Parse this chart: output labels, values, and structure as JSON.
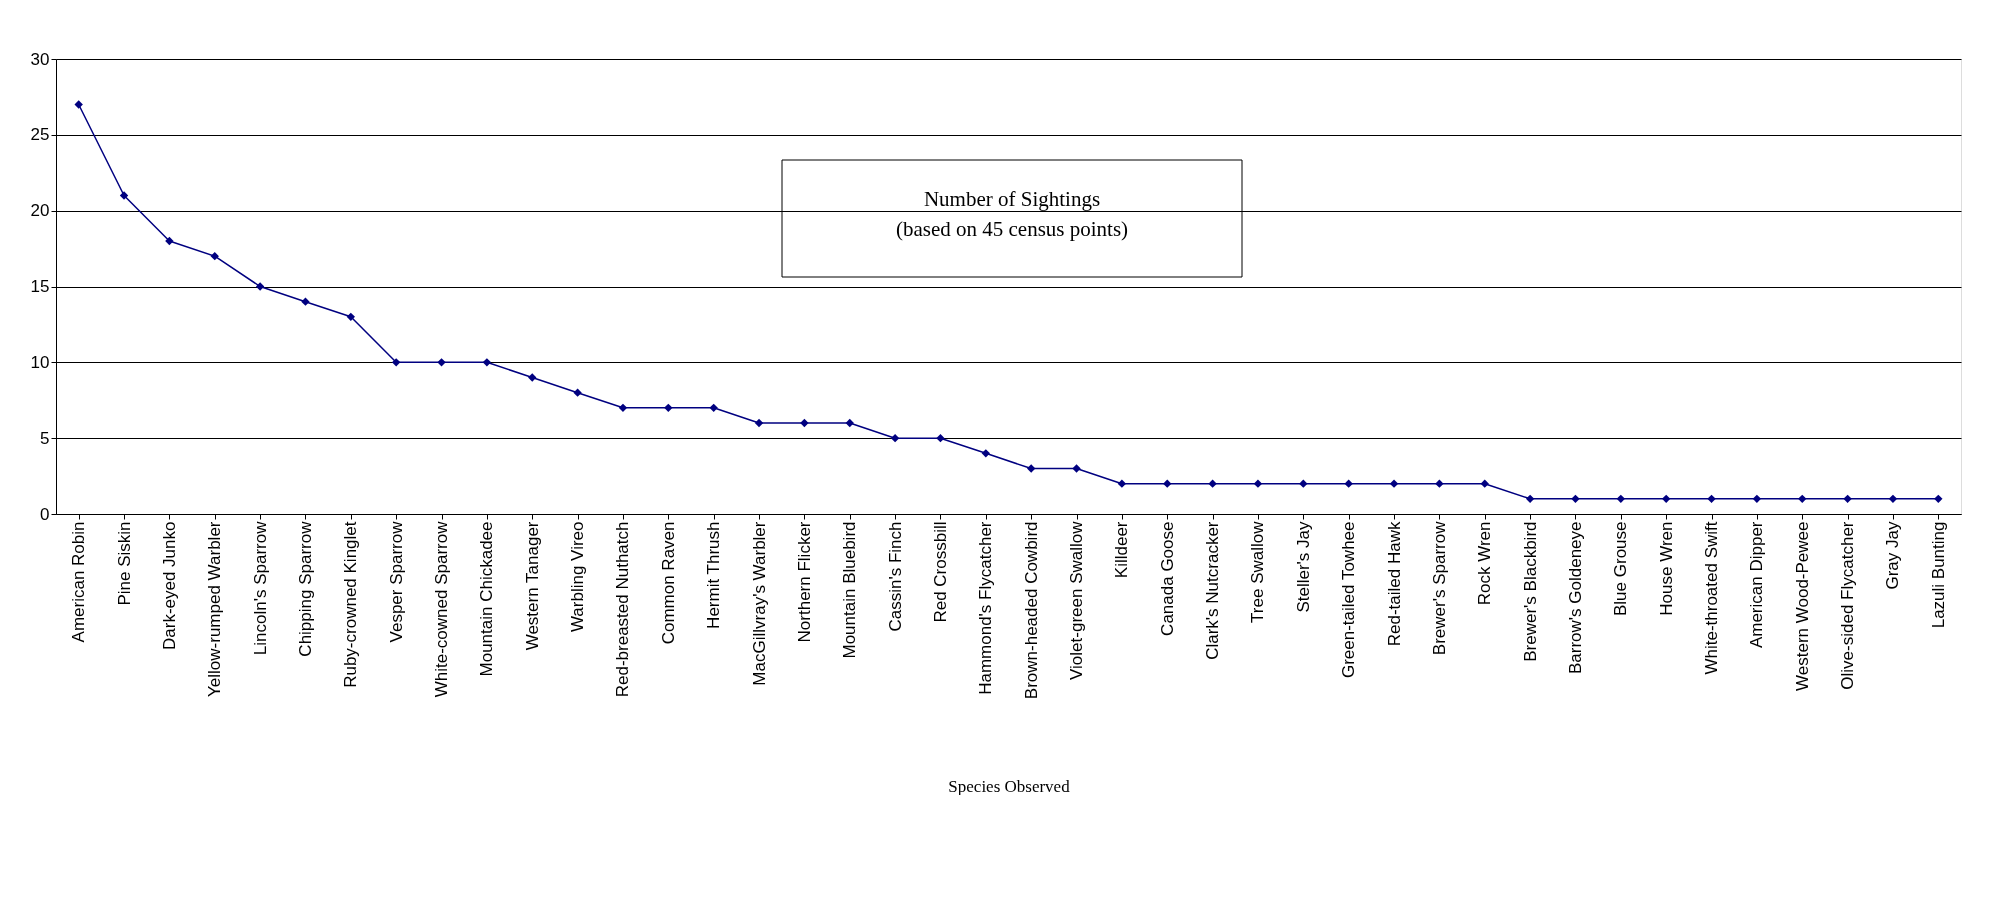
{
  "chart_data": {
    "type": "line",
    "title": "Number of Sightings",
    "subtitle": "(based on 45 census points)",
    "xlabel": "Species Observed",
    "categories": [
      "American Robin",
      "Pine Siskin",
      "Dark-eyed Junko",
      "Yellow-rumped Warbler",
      "Lincoln's Sparrow",
      "Chipping Sparrow",
      "Ruby-crowned Kinglet",
      "Vesper Sparrow",
      "White-cowned Sparrow",
      "Mountain Chickadee",
      "Western Tanager",
      "Warbling Vireo",
      "Red-breasted Nuthatch",
      "Common Raven",
      "Hermit Thrush",
      "MacGillvray's Warbler",
      "Northern Flicker",
      "Mountain Bluebird",
      "Cassin's Finch",
      "Red Crossbill",
      "Hammond's Flycatcher",
      "Brown-headed Cowbird",
      "Violet-green Swallow",
      "Killdeer",
      "Canada Goose",
      "Clark's Nutcracker",
      "Tree Swallow",
      "Steller's Jay",
      "Green-tailed Towhee",
      "Red-tailed Hawk",
      "Brewer's Sparrow",
      "Rock Wren",
      "Brewer's Blackbird",
      "Barrow's Goldeneye",
      "Blue Grouse",
      "House Wren",
      "White-throated Swift",
      "American Dipper",
      "Western Wood-Pewee",
      "Olive-sided Flycatcher",
      "Gray Jay",
      "Lazuli Bunting"
    ],
    "series": [
      {
        "color": "#000080",
        "values": [
          27,
          21,
          18,
          17,
          15,
          14,
          13,
          10,
          10,
          10,
          9,
          8,
          7,
          7,
          7,
          6,
          6,
          6,
          5,
          5,
          4,
          3,
          3,
          2,
          2,
          2,
          2,
          2,
          2,
          2,
          2,
          2,
          1,
          1,
          1,
          1,
          1,
          1,
          1,
          1,
          1,
          1
        ]
      }
    ],
    "ylim": [
      0,
      30
    ],
    "yticks": [
      0,
      5,
      10,
      15,
      20,
      25,
      30
    ],
    "grid": "y",
    "marker": "diamond",
    "line_style": "solid"
  }
}
